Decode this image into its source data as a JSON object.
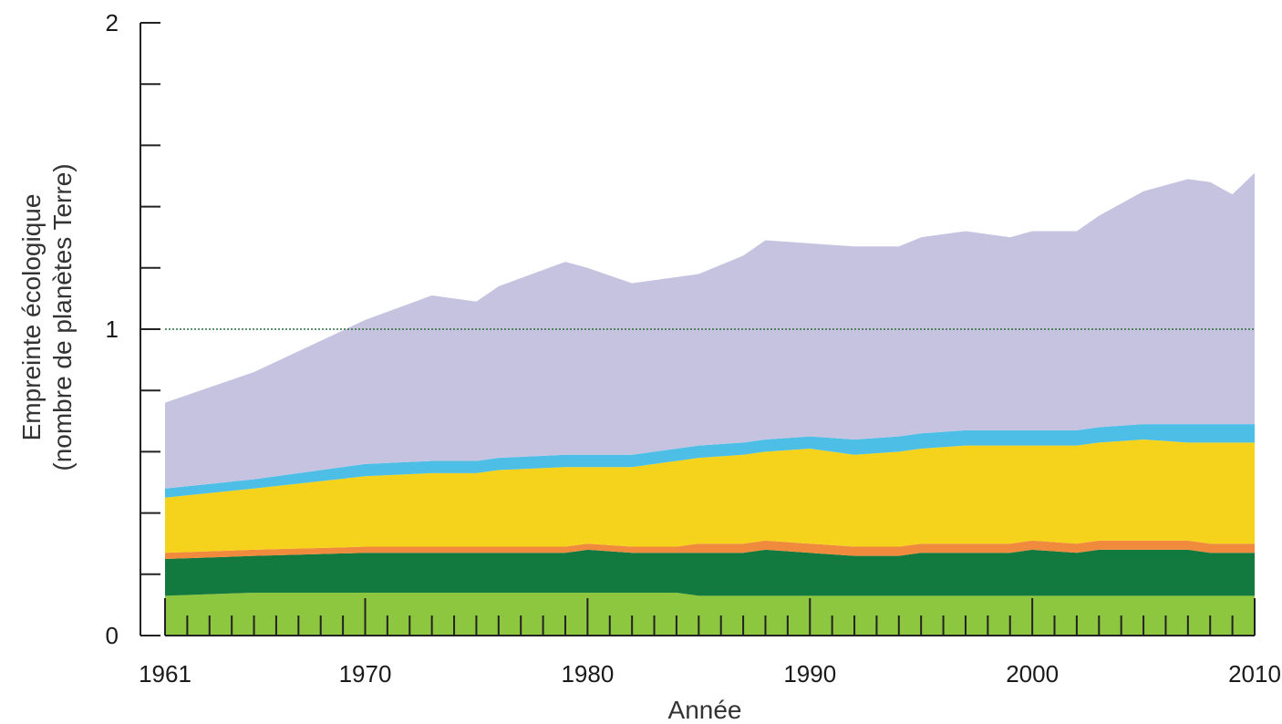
{
  "chart_data": {
    "type": "area",
    "stacked": true,
    "xlabel": "Année",
    "ylabel_line1": "Empreinte écologique",
    "ylabel_line2": "(nombre de planètes Terre)",
    "xlim": [
      1961,
      2010
    ],
    "ylim": [
      0,
      2
    ],
    "xticks": [
      "1961",
      "1970",
      "1980",
      "1990",
      "2000",
      "2010"
    ],
    "yticks": [
      "0",
      "1",
      "2"
    ],
    "reference_line": {
      "y": 1,
      "style": "dotted",
      "color": "#2e6b3e"
    },
    "x": [
      1961,
      1965,
      1970,
      1973,
      1975,
      1976,
      1979,
      1980,
      1982,
      1984,
      1985,
      1987,
      1988,
      1990,
      1992,
      1994,
      1995,
      1997,
      1999,
      2000,
      2002,
      2003,
      2005,
      2007,
      2008,
      2009,
      2010
    ],
    "series": [
      {
        "color": "#8dc63f",
        "values": [
          0.13,
          0.14,
          0.14,
          0.14,
          0.14,
          0.14,
          0.14,
          0.14,
          0.14,
          0.14,
          0.13,
          0.13,
          0.13,
          0.13,
          0.13,
          0.13,
          0.13,
          0.13,
          0.13,
          0.13,
          0.13,
          0.13,
          0.13,
          0.13,
          0.13,
          0.13,
          0.13
        ]
      },
      {
        "color": "#137a3f",
        "values": [
          0.12,
          0.12,
          0.13,
          0.13,
          0.13,
          0.13,
          0.13,
          0.14,
          0.13,
          0.13,
          0.14,
          0.14,
          0.15,
          0.14,
          0.13,
          0.13,
          0.14,
          0.14,
          0.14,
          0.15,
          0.14,
          0.15,
          0.15,
          0.15,
          0.14,
          0.14,
          0.14
        ]
      },
      {
        "color": "#f08a3c",
        "values": [
          0.02,
          0.02,
          0.02,
          0.02,
          0.02,
          0.02,
          0.02,
          0.02,
          0.02,
          0.02,
          0.03,
          0.03,
          0.03,
          0.03,
          0.03,
          0.03,
          0.03,
          0.03,
          0.03,
          0.03,
          0.03,
          0.03,
          0.03,
          0.03,
          0.03,
          0.03,
          0.03
        ]
      },
      {
        "color": "#f5d31d",
        "values": [
          0.18,
          0.2,
          0.23,
          0.24,
          0.24,
          0.25,
          0.26,
          0.25,
          0.26,
          0.28,
          0.28,
          0.29,
          0.29,
          0.31,
          0.3,
          0.31,
          0.31,
          0.32,
          0.32,
          0.31,
          0.32,
          0.32,
          0.33,
          0.32,
          0.33,
          0.33,
          0.33
        ]
      },
      {
        "color": "#4dbfe6",
        "values": [
          0.03,
          0.03,
          0.04,
          0.04,
          0.04,
          0.04,
          0.04,
          0.04,
          0.04,
          0.04,
          0.04,
          0.04,
          0.04,
          0.04,
          0.05,
          0.05,
          0.05,
          0.05,
          0.05,
          0.05,
          0.05,
          0.05,
          0.05,
          0.06,
          0.06,
          0.06,
          0.06
        ]
      },
      {
        "color": "#c5c3e0",
        "values": [
          0.28,
          0.35,
          0.47,
          0.54,
          0.52,
          0.56,
          0.63,
          0.61,
          0.56,
          0.56,
          0.56,
          0.61,
          0.65,
          0.63,
          0.63,
          0.62,
          0.64,
          0.65,
          0.63,
          0.65,
          0.65,
          0.69,
          0.76,
          0.8,
          0.79,
          0.75,
          0.82
        ]
      }
    ]
  }
}
